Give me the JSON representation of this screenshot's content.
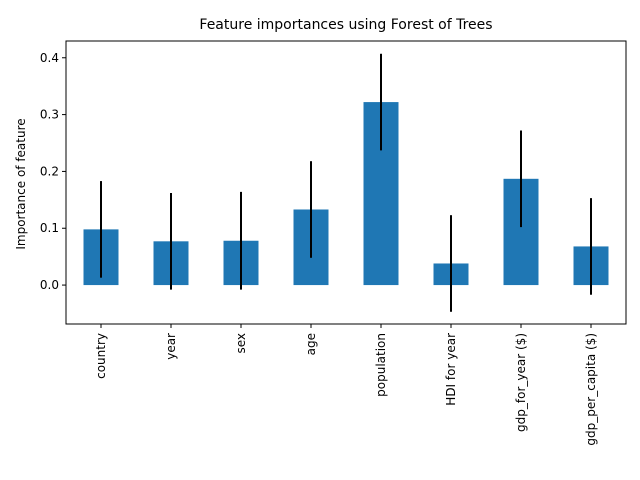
{
  "chart_data": {
    "type": "bar",
    "title": "Feature importances using Forest of Trees",
    "xlabel": "",
    "ylabel": "Importance of feature",
    "categories": [
      "country",
      "year",
      "sex",
      "age",
      "population",
      "HDI for year",
      "gdp_for_year ($)",
      "gdp_per_capita ($)"
    ],
    "values": [
      0.098,
      0.077,
      0.078,
      0.133,
      0.322,
      0.038,
      0.187,
      0.068
    ],
    "errors": [
      0.085,
      0.085,
      0.086,
      0.085,
      0.085,
      0.085,
      0.085,
      0.085
    ],
    "yticks": [
      0.0,
      0.1,
      0.2,
      0.3,
      0.4
    ],
    "ytick_labels": [
      "0.0",
      "0.1",
      "0.2",
      "0.3",
      "0.4"
    ],
    "ylim": [
      -0.0685,
      0.4295
    ],
    "bar_color": "#1f77b4",
    "error_color": "#000000",
    "grid": false,
    "legend": "none"
  }
}
